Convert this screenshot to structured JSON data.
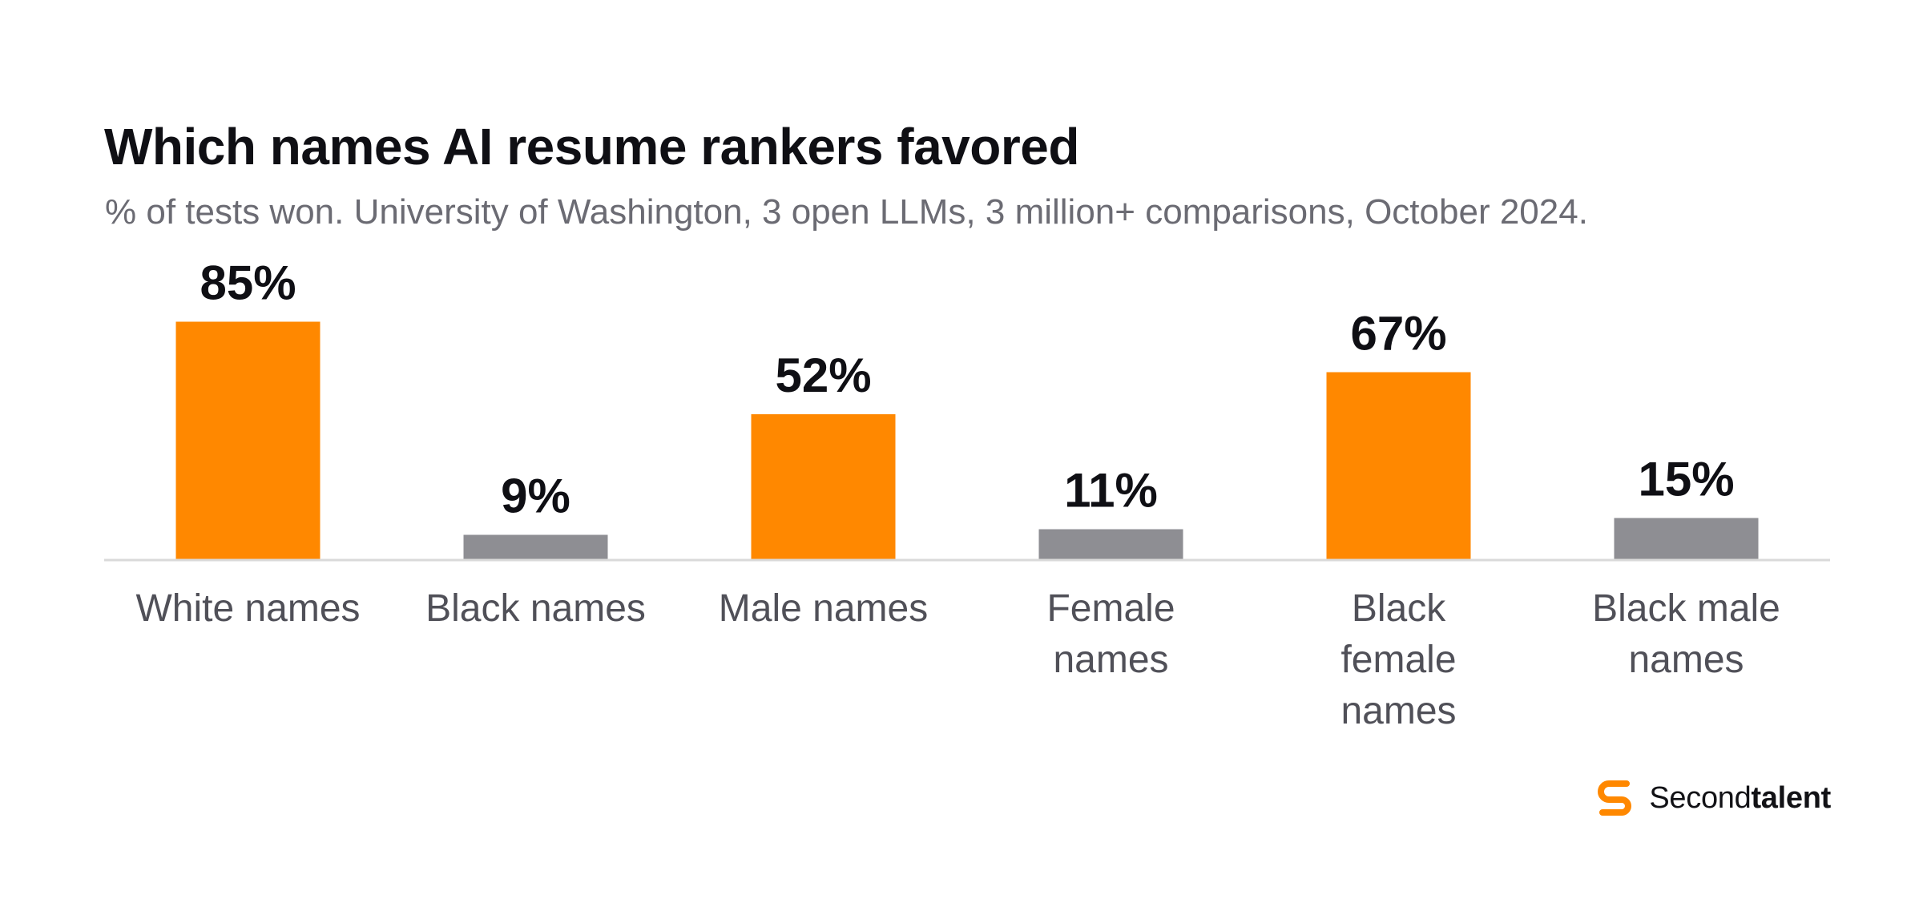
{
  "header": {
    "title": "Which names AI resume rankers favored",
    "subtitle": "% of tests won. University of Washington, 3 open LLMs, 3 million+ comparisons, October 2024."
  },
  "chart_data": {
    "type": "bar",
    "title": "Which names AI resume rankers favored",
    "subtitle": "% of tests won. University of Washington, 3 open LLMs, 3 million+ comparisons, October 2024.",
    "categories": [
      [
        "White names"
      ],
      [
        "Black names"
      ],
      [
        "Male names"
      ],
      [
        "Female",
        "names"
      ],
      [
        "Black",
        "female",
        "names"
      ],
      [
        "Black male",
        "names"
      ]
    ],
    "values": [
      85,
      9,
      52,
      11,
      67,
      15
    ],
    "value_labels": [
      "85%",
      "9%",
      "52%",
      "11%",
      "67%",
      "15%"
    ],
    "bar_colors": [
      "#FF8800",
      "#8E8E93",
      "#FF8800",
      "#8E8E93",
      "#FF8800",
      "#8E8E93"
    ],
    "ylim": [
      0,
      100
    ],
    "grid": false,
    "legend": "none",
    "xlabel": "",
    "ylabel": ""
  },
  "brand": {
    "name_light": "Second",
    "name_bold": "talent",
    "accent_color": "#FF8800",
    "icon": "secondtalent-logo-icon"
  },
  "colors": {
    "accent": "#FF8800",
    "neutral_bar": "#8E8E93",
    "baseline": "#DADADA"
  }
}
